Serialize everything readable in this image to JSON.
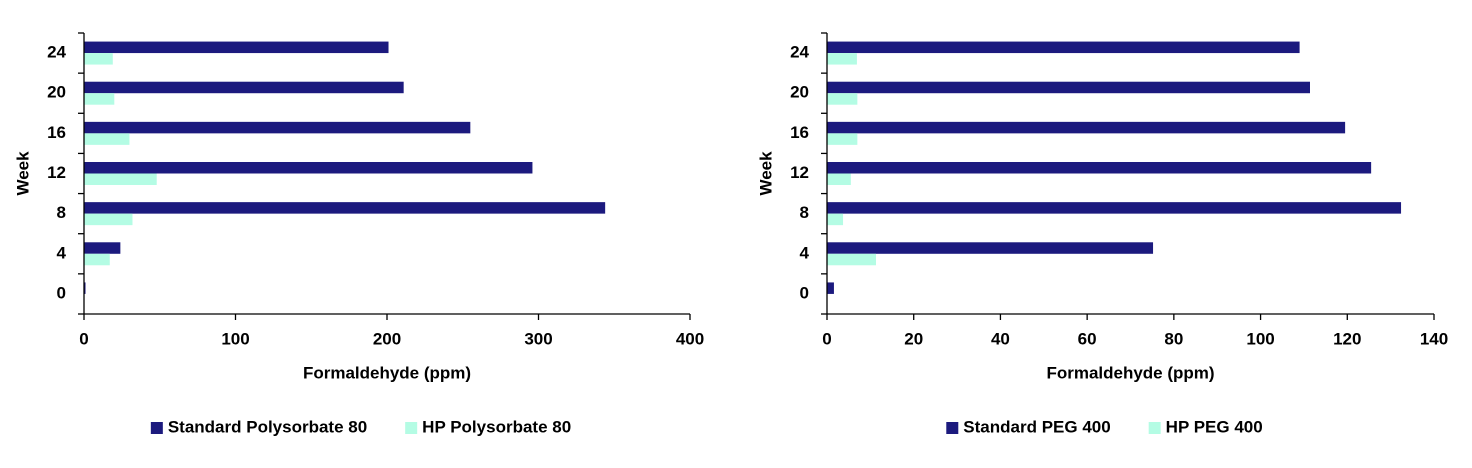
{
  "chart_data": [
    {
      "type": "bar",
      "orientation": "horizontal",
      "xlabel": "Formaldehyde  (ppm)",
      "ylabel": "Week",
      "categories": [
        "0",
        "4",
        "8",
        "12",
        "16",
        "20",
        "24"
      ],
      "series": [
        {
          "name": "Standard Polysorbate 80",
          "color": "#1c1a7e",
          "values": [
            1,
            24,
            344,
            296,
            255,
            211,
            201
          ]
        },
        {
          "name": "HP Polysorbate 80",
          "color": "#b4fce4",
          "values": [
            0,
            17,
            32,
            48,
            30,
            20,
            19
          ]
        }
      ],
      "xlim": [
        0,
        400
      ],
      "xticks": [
        0,
        100,
        200,
        300,
        400
      ],
      "legend": "bottom"
    },
    {
      "type": "bar",
      "orientation": "horizontal",
      "xlabel": "Formaldehyde  (ppm)",
      "ylabel": "Week",
      "categories": [
        "0",
        "4",
        "8",
        "12",
        "16",
        "20",
        "24"
      ],
      "series": [
        {
          "name": "Standard PEG 400",
          "color": "#1c1a7e",
          "values": [
            1.6,
            75.2,
            132.4,
            125.5,
            119.5,
            111.4,
            109
          ]
        },
        {
          "name": "HP PEG 400",
          "color": "#b4fce4",
          "values": [
            0,
            11.3,
            3.7,
            5.5,
            7,
            7,
            6.9
          ]
        }
      ],
      "xlim": [
        0,
        140
      ],
      "xticks": [
        0,
        20,
        40,
        60,
        80,
        100,
        120,
        140
      ],
      "legend": "bottom"
    }
  ]
}
